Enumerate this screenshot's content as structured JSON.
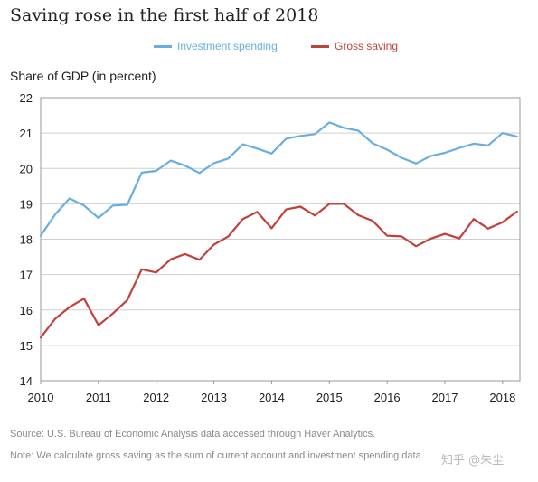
{
  "chart_data": {
    "type": "line",
    "title": "Saving rose in the first half of 2018",
    "ylabel": "Share of GDP (in percent)",
    "xlabel": "",
    "ylim": [
      14,
      22
    ],
    "xlim": [
      2010,
      2018.3
    ],
    "yticks": [
      14,
      15,
      16,
      17,
      18,
      19,
      20,
      21,
      22
    ],
    "xticks": [
      2010,
      2011,
      2012,
      2013,
      2014,
      2015,
      2016,
      2017,
      2018
    ],
    "grid": "horizontal",
    "legend_position": "top",
    "x": [
      2010,
      2010.25,
      2010.5,
      2010.75,
      2011,
      2011.25,
      2011.5,
      2011.75,
      2012,
      2012.25,
      2012.5,
      2012.75,
      2013,
      2013.25,
      2013.5,
      2013.75,
      2014,
      2014.25,
      2014.5,
      2014.75,
      2015,
      2015.25,
      2015.5,
      2015.75,
      2016,
      2016.25,
      2016.5,
      2016.75,
      2017,
      2017.25,
      2017.5,
      2017.75,
      2018,
      2018.25
    ],
    "series": [
      {
        "name": "Investment spending",
        "color": "#6aaee0",
        "values": [
          18.1,
          18.7,
          19.15,
          18.95,
          18.6,
          18.95,
          18.97,
          19.88,
          19.93,
          20.22,
          20.08,
          19.87,
          20.15,
          20.28,
          20.68,
          20.56,
          20.42,
          20.84,
          20.92,
          20.97,
          21.3,
          21.15,
          21.07,
          20.71,
          20.53,
          20.3,
          20.14,
          20.35,
          20.44,
          20.58,
          20.7,
          20.65,
          21.0,
          20.9
        ]
      },
      {
        "name": "Gross saving",
        "color": "#c0413b",
        "values": [
          15.22,
          15.75,
          16.08,
          16.32,
          15.57,
          15.9,
          16.28,
          17.15,
          17.06,
          17.43,
          17.58,
          17.42,
          17.85,
          18.08,
          18.57,
          18.77,
          18.31,
          18.84,
          18.92,
          18.67,
          19.0,
          19.0,
          18.68,
          18.52,
          18.1,
          18.08,
          17.8,
          18.01,
          18.15,
          18.02,
          18.57,
          18.3,
          18.48,
          18.78
        ]
      }
    ]
  },
  "notes": {
    "source": "Source: U.S. Bureau of Economic Analysis data accessed through Haver Analytics.",
    "note": "Note: We calculate gross saving as the sum of current account and investment spending data."
  },
  "watermark": "知乎 @朱尘"
}
